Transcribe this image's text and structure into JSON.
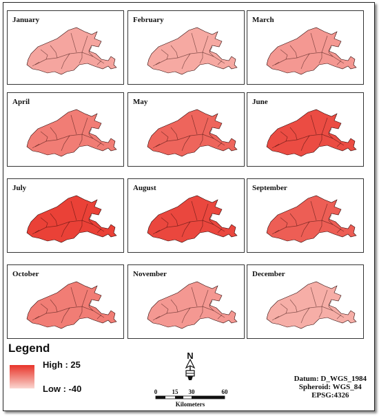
{
  "months": [
    {
      "label": "January",
      "intensity": 0.3
    },
    {
      "label": "February",
      "intensity": 0.28
    },
    {
      "label": "March",
      "intensity": 0.38
    },
    {
      "label": "April",
      "intensity": 0.55
    },
    {
      "label": "May",
      "intensity": 0.7
    },
    {
      "label": "June",
      "intensity": 0.85
    },
    {
      "label": "July",
      "intensity": 0.92
    },
    {
      "label": "August",
      "intensity": 0.88
    },
    {
      "label": "September",
      "intensity": 0.74
    },
    {
      "label": "October",
      "intensity": 0.55
    },
    {
      "label": "November",
      "intensity": 0.38
    },
    {
      "label": "December",
      "intensity": 0.25
    }
  ],
  "legend": {
    "title": "Legend",
    "high": "High : 25",
    "low": "Low : -40",
    "color_high": "#e8342a",
    "color_low": "#fbd6d1"
  },
  "north_arrow": {
    "label": "N"
  },
  "scale_bar": {
    "ticks": [
      "0",
      "15",
      "30",
      "60"
    ],
    "unit": "Kilometers"
  },
  "datum": {
    "line1": "Datum: D_WGS_1984",
    "line2": "Spheroid: WGS_84",
    "line3": "EPSG:4326"
  }
}
